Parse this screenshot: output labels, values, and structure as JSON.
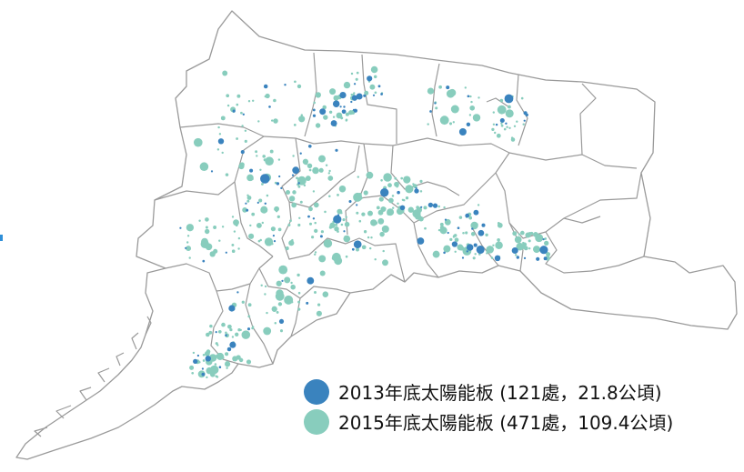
{
  "colors": {
    "panel_2013": "#3a83be",
    "panel_2015": "#88cdbd",
    "boundary": "#9a9a9a",
    "background": "#ffffff"
  },
  "legend": {
    "items": [
      {
        "label": "2013年底太陽能板 (121處，21.8公頃)",
        "color_key": "panel_2013"
      },
      {
        "label": "2015年底太陽能板 (471處，109.4公頃)",
        "color_key": "panel_2015"
      }
    ]
  },
  "map": {
    "layers": [
      {
        "name": "2013",
        "count": 121,
        "area": 21.8
      },
      {
        "name": "2015",
        "count": 471,
        "area": 109.4
      }
    ]
  }
}
